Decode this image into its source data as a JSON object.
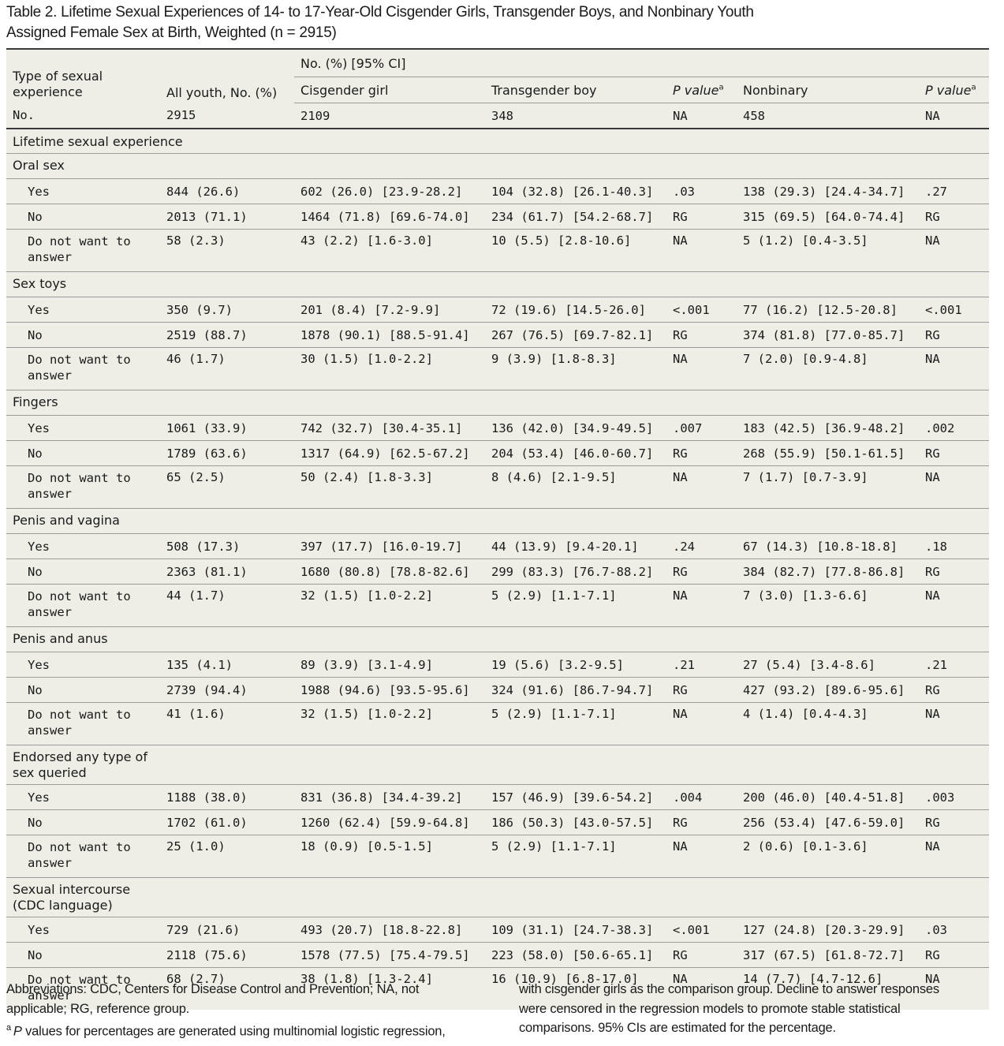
{
  "title": {
    "line1": "Table 2. Lifetime Sexual Experiences of 14- to 17-Year-Old Cisgender Girls, Transgender Boys, and Nonbinary Youth",
    "line2": "Assigned Female Sex at Birth, Weighted (n = 2915)"
  },
  "header": {
    "type_line1": "Type of sexual",
    "type_line2": "experience",
    "all_youth": "All youth, No. (%)",
    "no_pct_ci": "No. (%) [95% CI]",
    "cisgender": "Cisgender girl",
    "transgender": "Transgender boy",
    "p_value": "P value",
    "p_sup": "a",
    "nonbinary": "Nonbinary"
  },
  "n_row": {
    "label": "No.",
    "all": "2915",
    "cis": "2109",
    "trans": "348",
    "p1": "NA",
    "nb": "458",
    "p2": "NA"
  },
  "section_label": "Lifetime sexual experience",
  "categories": [
    {
      "name_lines": [
        "Oral sex"
      ],
      "rows": [
        {
          "label_lines": [
            "Yes"
          ],
          "all": "844 (26.6)",
          "cis": "602 (26.0) [23.9-28.2]",
          "trans": "104 (32.8) [26.1-40.3]",
          "p1": ".03",
          "nb": "138 (29.3) [24.4-34.7]",
          "p2": ".27"
        },
        {
          "label_lines": [
            "No"
          ],
          "all": "2013 (71.1)",
          "cis": "1464 (71.8) [69.6-74.0]",
          "trans": "234 (61.7) [54.2-68.7]",
          "p1": "RG",
          "nb": "315 (69.5) [64.0-74.4]",
          "p2": "RG"
        },
        {
          "label_lines": [
            "Do not want to",
            "answer"
          ],
          "all": "58 (2.3)",
          "cis": "43 (2.2) [1.6-3.0]",
          "trans": "10 (5.5) [2.8-10.6]",
          "p1": "NA",
          "nb": "5 (1.2) [0.4-3.5]",
          "p2": "NA"
        }
      ]
    },
    {
      "name_lines": [
        "Sex toys"
      ],
      "rows": [
        {
          "label_lines": [
            "Yes"
          ],
          "all": "350 (9.7)",
          "cis": "201 (8.4) [7.2-9.9]",
          "trans": "72 (19.6) [14.5-26.0]",
          "p1": "<.001",
          "nb": "77 (16.2) [12.5-20.8]",
          "p2": "<.001"
        },
        {
          "label_lines": [
            "No"
          ],
          "all": "2519 (88.7)",
          "cis": "1878 (90.1) [88.5-91.4]",
          "trans": "267 (76.5) [69.7-82.1]",
          "p1": "RG",
          "nb": "374 (81.8) [77.0-85.7]",
          "p2": "RG"
        },
        {
          "label_lines": [
            "Do not want to",
            "answer"
          ],
          "all": "46 (1.7)",
          "cis": "30 (1.5) [1.0-2.2]",
          "trans": "9 (3.9) [1.8-8.3]",
          "p1": "NA",
          "nb": "7 (2.0) [0.9-4.8]",
          "p2": "NA"
        }
      ]
    },
    {
      "name_lines": [
        "Fingers"
      ],
      "rows": [
        {
          "label_lines": [
            "Yes"
          ],
          "all": "1061 (33.9)",
          "cis": "742 (32.7) [30.4-35.1]",
          "trans": "136 (42.0) [34.9-49.5]",
          "p1": ".007",
          "nb": "183 (42.5) [36.9-48.2]",
          "p2": ".002"
        },
        {
          "label_lines": [
            "No"
          ],
          "all": "1789 (63.6)",
          "cis": "1317 (64.9) [62.5-67.2]",
          "trans": "204 (53.4) [46.0-60.7]",
          "p1": "RG",
          "nb": "268 (55.9) [50.1-61.5]",
          "p2": "RG"
        },
        {
          "label_lines": [
            "Do not want to",
            "answer"
          ],
          "all": "65 (2.5)",
          "cis": "50 (2.4) [1.8-3.3]",
          "trans": "8 (4.6) [2.1-9.5]",
          "p1": "NA",
          "nb": "7 (1.7) [0.7-3.9]",
          "p2": "NA"
        }
      ]
    },
    {
      "name_lines": [
        "Penis and vagina"
      ],
      "rows": [
        {
          "label_lines": [
            "Yes"
          ],
          "all": "508 (17.3)",
          "cis": "397 (17.7) [16.0-19.7]",
          "trans": "44 (13.9) [9.4-20.1]",
          "p1": ".24",
          "nb": "67 (14.3) [10.8-18.8]",
          "p2": ".18"
        },
        {
          "label_lines": [
            "No"
          ],
          "all": "2363 (81.1)",
          "cis": "1680 (80.8) [78.8-82.6]",
          "trans": "299 (83.3) [76.7-88.2]",
          "p1": "RG",
          "nb": "384 (82.7) [77.8-86.8]",
          "p2": "RG"
        },
        {
          "label_lines": [
            "Do not want to",
            "answer"
          ],
          "all": "44 (1.7)",
          "cis": "32 (1.5) [1.0-2.2]",
          "trans": "5 (2.9) [1.1-7.1]",
          "p1": "NA",
          "nb": "7 (3.0) [1.3-6.6]",
          "p2": "NA"
        }
      ]
    },
    {
      "name_lines": [
        "Penis and anus"
      ],
      "rows": [
        {
          "label_lines": [
            "Yes"
          ],
          "all": "135 (4.1)",
          "cis": "89 (3.9) [3.1-4.9]",
          "trans": "19 (5.6) [3.2-9.5]",
          "p1": ".21",
          "nb": "27 (5.4) [3.4-8.6]",
          "p2": ".21"
        },
        {
          "label_lines": [
            "No"
          ],
          "all": "2739 (94.4)",
          "cis": "1988 (94.6) [93.5-95.6]",
          "trans": "324 (91.6) [86.7-94.7]",
          "p1": "RG",
          "nb": "427 (93.2) [89.6-95.6]",
          "p2": "RG"
        },
        {
          "label_lines": [
            "Do not want to",
            "answer"
          ],
          "all": "41 (1.6)",
          "cis": "32 (1.5) [1.0-2.2]",
          "trans": "5 (2.9) [1.1-7.1]",
          "p1": "NA",
          "nb": "4 (1.4) [0.4-4.3]",
          "p2": "NA"
        }
      ]
    },
    {
      "name_lines": [
        "Endorsed any type of",
        "sex queried"
      ],
      "rows": [
        {
          "label_lines": [
            "Yes"
          ],
          "all": "1188 (38.0)",
          "cis": "831 (36.8) [34.4-39.2]",
          "trans": "157 (46.9) [39.6-54.2]",
          "p1": ".004",
          "nb": "200 (46.0) [40.4-51.8]",
          "p2": ".003"
        },
        {
          "label_lines": [
            "No"
          ],
          "all": "1702 (61.0)",
          "cis": "1260 (62.4) [59.9-64.8]",
          "trans": "186 (50.3) [43.0-57.5]",
          "p1": "RG",
          "nb": "256 (53.4) [47.6-59.0]",
          "p2": "RG"
        },
        {
          "label_lines": [
            "Do not want to",
            "answer"
          ],
          "all": "25 (1.0)",
          "cis": "18 (0.9) [0.5-1.5]",
          "trans": "5 (2.9) [1.1-7.1]",
          "p1": "NA",
          "nb": "2 (0.6) [0.1-3.6]",
          "p2": "NA"
        }
      ]
    },
    {
      "name_lines": [
        "Sexual intercourse",
        "(CDC language)"
      ],
      "rows": [
        {
          "label_lines": [
            "Yes"
          ],
          "all": "729 (21.6)",
          "cis": "493 (20.7) [18.8-22.8]",
          "trans": "109 (31.1) [24.7-38.3]",
          "p1": "<.001",
          "nb": "127 (24.8) [20.3-29.9]",
          "p2": ".03"
        },
        {
          "label_lines": [
            "No"
          ],
          "all": "2118 (75.6)",
          "cis": "1578 (77.5) [75.4-79.5]",
          "trans": "223 (58.0) [50.6-65.1]",
          "p1": "RG",
          "nb": "317 (67.5) [61.8-72.7]",
          "p2": "RG"
        },
        {
          "label_lines": [
            "Do not want to",
            "answer"
          ],
          "all": "68 (2.7)",
          "cis": "38 (1.8) [1.3-2.4]",
          "trans": "16 (10.9) [6.8-17.0]",
          "p1": "NA",
          "nb": "14 (7.7) [4.7-12.6]",
          "p2": "NA"
        }
      ]
    }
  ],
  "footnotes": {
    "left_line1": "Abbreviations: CDC, Centers for Disease Control and Prevention; NA, not",
    "left_line2": "applicable; RG, reference group.",
    "fn_mark": "a",
    "fn_p": "P",
    "fn_rest": " values for percentages are generated using multinomial logistic regression,",
    "right_line1": "with cisgender girls as the comparison group. Decline to answer responses",
    "right_line2": "were censored in the regression models to promote stable statistical",
    "right_line3": "comparisons. 95% CIs are estimated for the percentage."
  },
  "colors": {
    "table_bg": "#eeeee6",
    "rule": "#3a3a3a",
    "thin_rule": "#9a9a9a"
  }
}
